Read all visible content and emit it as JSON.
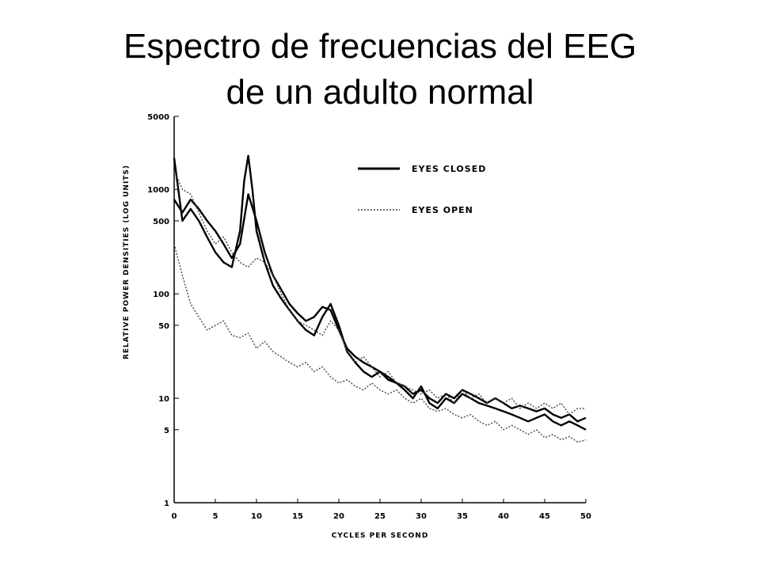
{
  "slide": {
    "title_line1": "Espectro de frecuencias del EEG",
    "title_line2": "de un adulto normal"
  },
  "chart_data": {
    "type": "line",
    "title": "Espectro de frecuencias del EEG de un adulto normal",
    "xlabel": "CYCLES PER SECOND",
    "ylabel": "RELATIVE POWER DENSITIES (LOG UNITS)",
    "xlim": [
      0,
      50
    ],
    "ylim": [
      1,
      5000
    ],
    "y_scale": "log",
    "grid": false,
    "legend_position": "top-right",
    "x_ticks": [
      0,
      5,
      10,
      15,
      20,
      25,
      30,
      35,
      40,
      45,
      50
    ],
    "x_tick_labels": [
      "0",
      "5",
      "10",
      "15",
      "20",
      "25",
      "30",
      "35",
      "40",
      "45",
      "50"
    ],
    "y_ticks": [
      1,
      5,
      10,
      50,
      100,
      500,
      1000,
      5000
    ],
    "y_tick_labels": [
      "1",
      "5",
      "10",
      "50",
      "100",
      "500",
      "1000",
      "5000"
    ],
    "legend": [
      {
        "label": "EYES CLOSED",
        "style": "solid",
        "color": "#000000"
      },
      {
        "label": "EYES OPEN",
        "style": "dotted",
        "color": "#444444"
      }
    ],
    "series": [
      {
        "name": "EYES CLOSED",
        "style": "solid",
        "color": "#000000",
        "x": [
          0,
          1,
          2,
          3,
          4,
          5,
          6,
          7,
          8,
          8.5,
          9,
          9.5,
          10,
          11,
          12,
          13,
          14,
          15,
          16,
          17,
          18,
          19,
          20,
          21,
          22,
          23,
          24,
          25,
          26,
          27,
          28,
          29,
          30,
          31,
          32,
          33,
          34,
          35,
          36,
          37,
          38,
          39,
          40,
          41,
          42,
          43,
          44,
          45,
          46,
          47,
          48,
          49,
          50
        ],
        "values": [
          2000,
          500,
          650,
          500,
          350,
          250,
          200,
          180,
          400,
          1200,
          2100,
          1000,
          400,
          200,
          120,
          90,
          70,
          55,
          45,
          40,
          60,
          80,
          50,
          28,
          22,
          18,
          16,
          18,
          15,
          14,
          12,
          10,
          13,
          9,
          8,
          10,
          9,
          11,
          10,
          9,
          8.5,
          8,
          7.5,
          7,
          6.5,
          6,
          6.5,
          7,
          6,
          5.5,
          6,
          5.5,
          5
        ]
      },
      {
        "name": "EYES CLOSED",
        "style": "solid",
        "color": "#000000",
        "x": [
          0,
          1,
          2,
          3,
          4,
          5,
          6,
          7,
          8,
          9,
          10,
          11,
          12,
          13,
          14,
          15,
          16,
          17,
          18,
          19,
          20,
          21,
          22,
          23,
          24,
          25,
          26,
          27,
          28,
          29,
          30,
          31,
          32,
          33,
          34,
          35,
          36,
          37,
          38,
          39,
          40,
          41,
          42,
          43,
          44,
          45,
          46,
          47,
          48,
          49,
          50
        ],
        "values": [
          800,
          600,
          800,
          650,
          500,
          400,
          300,
          220,
          300,
          900,
          500,
          250,
          150,
          110,
          80,
          65,
          55,
          60,
          75,
          70,
          45,
          30,
          25,
          22,
          20,
          18,
          16,
          14,
          13,
          11,
          12,
          10,
          9,
          11,
          10,
          12,
          11,
          10,
          9,
          10,
          9,
          8,
          8.5,
          8,
          7.5,
          8,
          7,
          6.5,
          7,
          6,
          6.5
        ]
      },
      {
        "name": "EYES OPEN",
        "style": "dotted",
        "color": "#444444",
        "x": [
          0,
          1,
          2,
          3,
          4,
          5,
          6,
          7,
          8,
          9,
          10,
          11,
          12,
          13,
          14,
          15,
          16,
          17,
          18,
          19,
          20,
          21,
          22,
          23,
          24,
          25,
          26,
          27,
          28,
          29,
          30,
          31,
          32,
          33,
          34,
          35,
          36,
          37,
          38,
          39,
          40,
          41,
          42,
          43,
          44,
          45,
          46,
          47,
          48,
          49,
          50
        ],
        "values": [
          300,
          150,
          80,
          60,
          45,
          50,
          55,
          40,
          38,
          42,
          30,
          35,
          28,
          25,
          22,
          20,
          22,
          18,
          20,
          16,
          14,
          15,
          13,
          12,
          14,
          12,
          11,
          12,
          10,
          9,
          10,
          8,
          7.5,
          8,
          7,
          6.5,
          7,
          6,
          5.5,
          6,
          5,
          5.5,
          5,
          4.5,
          5,
          4.2,
          4.5,
          4,
          4.3,
          3.8,
          4
        ]
      },
      {
        "name": "EYES OPEN",
        "style": "dotted",
        "color": "#444444",
        "x": [
          0,
          1,
          2,
          3,
          4,
          5,
          6,
          7,
          8,
          9,
          10,
          11,
          12,
          13,
          14,
          15,
          16,
          17,
          18,
          19,
          20,
          21,
          22,
          23,
          24,
          25,
          26,
          27,
          28,
          29,
          30,
          31,
          32,
          33,
          34,
          35,
          36,
          37,
          38,
          39,
          40,
          41,
          42,
          43,
          44,
          45,
          46,
          47,
          48,
          49,
          50
        ],
        "values": [
          1500,
          1000,
          900,
          600,
          400,
          300,
          350,
          250,
          200,
          180,
          220,
          200,
          150,
          100,
          70,
          55,
          50,
          45,
          40,
          55,
          45,
          28,
          22,
          25,
          20,
          16,
          18,
          14,
          13,
          12,
          11,
          12,
          10,
          11,
          9,
          12,
          10,
          11,
          9,
          10,
          9,
          10,
          8,
          9,
          8,
          9,
          8,
          9,
          7,
          8,
          8
        ]
      }
    ]
  }
}
